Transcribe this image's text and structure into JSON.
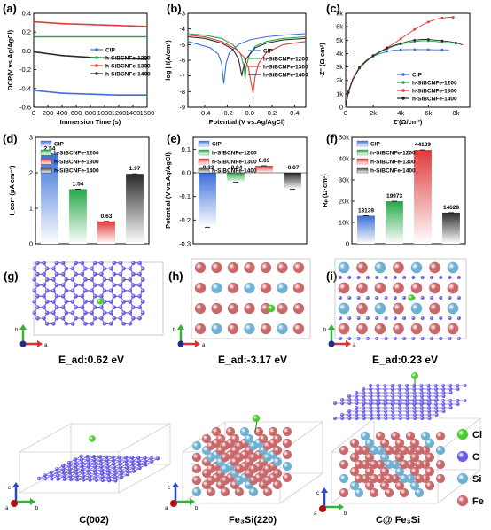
{
  "colors": {
    "cip": "#3a6fd8",
    "s1200": "#27a84a",
    "s1300": "#e03a3a",
    "s1400": "#2a2a2a",
    "cl": "#4ccd2c",
    "c": "#6a5ce0",
    "si": "#6fb0d2",
    "fe": "#c9686a",
    "axis_x": "#d93030",
    "axis_y": "#33b233",
    "axis_c": "#2946c8"
  },
  "legend": [
    "CIP",
    "h-SiBCNFe-1200",
    "h-SiBCNFe-1300",
    "h-SiBCNFe-1400"
  ],
  "chart_data": [
    {
      "id": "a",
      "panel_label": "(a)",
      "type": "line",
      "xlabel": "Immersion Time (s)",
      "ylabel": "OCP(V vs.Ag/AgCl)",
      "xlim": [
        0,
        1600
      ],
      "ylim": [
        -0.6,
        0.4
      ],
      "xticks": [
        0,
        200,
        400,
        600,
        800,
        1000,
        1200,
        1400,
        1600
      ],
      "yticks": [
        -0.6,
        -0.4,
        -0.2,
        0.0,
        0.2,
        0.4
      ],
      "xtick_labels": [
        "0",
        "200",
        "400",
        "600",
        "800",
        "1000",
        "1200",
        "1400",
        "1600"
      ],
      "ytick_labels": [
        "-0.6",
        "-0.4",
        "-0.2",
        "0.0",
        "0.2",
        "0.4"
      ],
      "legend_position": "center-right",
      "series": [
        {
          "name": "CIP",
          "x": [
            0,
            400,
            800,
            1200,
            1600
          ],
          "y": [
            -0.42,
            -0.45,
            -0.46,
            -0.47,
            -0.47
          ]
        },
        {
          "name": "h-SiBCNFe-1200",
          "x": [
            0,
            400,
            800,
            1200,
            1600
          ],
          "y": [
            0.15,
            0.15,
            0.15,
            0.15,
            0.15
          ]
        },
        {
          "name": "h-SiBCNFe-1300",
          "x": [
            0,
            400,
            800,
            1200,
            1600
          ],
          "y": [
            0.31,
            0.29,
            0.28,
            0.27,
            0.26
          ]
        },
        {
          "name": "h-SiBCNFe-1400",
          "x": [
            0,
            400,
            800,
            1200,
            1600
          ],
          "y": [
            -0.01,
            -0.05,
            -0.07,
            -0.08,
            -0.09
          ]
        }
      ]
    },
    {
      "id": "b",
      "panel_label": "(b)",
      "type": "line",
      "xlabel": "Potential (V vs.Ag/AgCl)",
      "ylabel": "log | I(A/cm²)",
      "xlim": [
        -0.55,
        0.5
      ],
      "ylim": [
        -9,
        -3
      ],
      "xticks": [
        -0.4,
        -0.2,
        0.0,
        0.2,
        0.4
      ],
      "yticks": [
        -9,
        -8,
        -7,
        -6,
        -5,
        -4,
        -3
      ],
      "xtick_labels": [
        "-0.4",
        "-0.2",
        "0.0",
        "0.2",
        "0.4"
      ],
      "ytick_labels": [
        "-9",
        "-8",
        "-7",
        "-6",
        "-5",
        "-4",
        "-3"
      ],
      "legend_position": "center-right",
      "series": [
        {
          "name": "CIP",
          "x": [
            -0.55,
            -0.45,
            -0.35,
            -0.28,
            -0.25,
            -0.23,
            -0.21,
            -0.18,
            -0.1,
            0.0,
            0.15,
            0.3,
            0.5
          ],
          "y": [
            -4.8,
            -5.0,
            -5.2,
            -5.6,
            -6.2,
            -7.5,
            -6.2,
            -5.5,
            -5.0,
            -4.7,
            -4.5,
            -4.4,
            -4.3
          ]
        },
        {
          "name": "h-SiBCNFe-1200",
          "x": [
            -0.55,
            -0.4,
            -0.25,
            -0.15,
            -0.08,
            -0.05,
            -0.04,
            -0.03,
            0.0,
            0.05,
            0.15,
            0.3,
            0.5
          ],
          "y": [
            -4.3,
            -4.4,
            -4.6,
            -5.0,
            -5.6,
            -6.4,
            -7.2,
            -6.4,
            -5.6,
            -5.1,
            -4.8,
            -4.6,
            -4.5
          ]
        },
        {
          "name": "h-SiBCNFe-1300",
          "x": [
            -0.55,
            -0.4,
            -0.25,
            -0.12,
            -0.05,
            -0.01,
            0.01,
            0.03,
            0.05,
            0.08,
            0.15,
            0.3,
            0.5
          ],
          "y": [
            -4.4,
            -4.5,
            -4.8,
            -5.3,
            -5.8,
            -6.5,
            -7.3,
            -8.1,
            -7.0,
            -6.2,
            -5.5,
            -5.0,
            -4.8
          ]
        },
        {
          "name": "h-SiBCNFe-1400",
          "x": [
            -0.55,
            -0.4,
            -0.25,
            -0.15,
            -0.1,
            -0.08,
            -0.07,
            -0.06,
            -0.03,
            0.05,
            0.15,
            0.3,
            0.5
          ],
          "y": [
            -4.5,
            -4.6,
            -4.9,
            -5.3,
            -5.9,
            -6.6,
            -7.0,
            -6.6,
            -5.9,
            -5.2,
            -4.9,
            -4.7,
            -4.6
          ]
        }
      ]
    },
    {
      "id": "c",
      "panel_label": "(c)",
      "type": "scatter",
      "xlabel": "Z'(Ω/cm²)",
      "ylabel": "-Z'' (Ω·cm²)",
      "xlim": [
        0,
        9000
      ],
      "ylim": [
        0,
        7000
      ],
      "xticks": [
        0,
        2000,
        4000,
        6000,
        8000
      ],
      "yticks": [
        0,
        1000,
        2000,
        3000,
        4000,
        5000,
        6000,
        7000
      ],
      "xtick_labels": [
        "0",
        "2k",
        "4k",
        "6k",
        "8k"
      ],
      "ytick_labels": [
        "0",
        "1k",
        "2k",
        "3k",
        "4k",
        "5k",
        "6k",
        "7k"
      ],
      "legend_position": "bottom-right",
      "series": [
        {
          "name": "CIP",
          "x": [
            0,
            200,
            500,
            1000,
            1500,
            2000,
            2500,
            3000,
            3500,
            4000,
            4500,
            5000,
            5500,
            6000,
            6500,
            7000,
            7500
          ],
          "y": [
            0,
            1200,
            2100,
            3000,
            3500,
            3800,
            4000,
            4150,
            4250,
            4280,
            4300,
            4300,
            4300,
            4290,
            4280,
            4280,
            4270
          ]
        },
        {
          "name": "h-SiBCNFe-1200",
          "x": [
            0,
            200,
            500,
            1000,
            1500,
            2000,
            2500,
            3000,
            3500,
            4000,
            4500,
            5000,
            5500,
            6000,
            6500,
            7000,
            7500,
            8000
          ],
          "y": [
            0,
            1100,
            2000,
            2900,
            3400,
            3800,
            4100,
            4350,
            4550,
            4700,
            4800,
            4900,
            4950,
            4950,
            4900,
            4850,
            4800,
            4750
          ]
        },
        {
          "name": "h-SiBCNFe-1300",
          "x": [
            0,
            200,
            500,
            1000,
            1500,
            2000,
            2500,
            3000,
            3500,
            4000,
            4500,
            5000,
            5500,
            6000,
            6500,
            7000,
            7500,
            7800
          ],
          "y": [
            0,
            1200,
            2100,
            3000,
            3500,
            3850,
            4150,
            4450,
            4750,
            5100,
            5450,
            5800,
            6100,
            6350,
            6550,
            6650,
            6700,
            6700
          ]
        },
        {
          "name": "h-SiBCNFe-1400",
          "x": [
            0,
            200,
            500,
            1000,
            1500,
            2000,
            2500,
            3000,
            3500,
            4000,
            4500,
            5000,
            5500,
            6000,
            6500,
            7000,
            7500,
            8000,
            8500
          ],
          "y": [
            0,
            1100,
            2000,
            2950,
            3450,
            3850,
            4150,
            4400,
            4600,
            4750,
            4900,
            5000,
            5050,
            5050,
            5000,
            4950,
            4900,
            4800,
            4650
          ]
        }
      ]
    },
    {
      "id": "d",
      "panel_label": "(d)",
      "type": "bar",
      "ylabel": "I_corr (μA cm⁻²)",
      "categories": [
        "CIP",
        "h-SiBCNFe-1200",
        "h-SiBCNFe-1300",
        "h-SiBCNFe-1400"
      ],
      "values": [
        2.54,
        1.54,
        0.63,
        1.97
      ],
      "value_labels": [
        "2.54",
        "1.54",
        "0.63",
        "1.97"
      ],
      "ylim": [
        0,
        3
      ],
      "yticks": [
        0,
        1,
        2,
        3
      ],
      "ytick_labels": [
        "0",
        "1",
        "2",
        "3"
      ],
      "legend_position": "top-left"
    },
    {
      "id": "e",
      "panel_label": "(e)",
      "type": "bar",
      "ylabel": "Potential (V vs.Ag/AgCl)",
      "categories": [
        "CIP",
        "h-SiBCNFe-1200",
        "h-SiBCNFe-1300",
        "h-SiBCNFe-1400"
      ],
      "values": [
        -0.23,
        -0.04,
        0.03,
        -0.07
      ],
      "value_labels": [
        "-0.23",
        "-0.04",
        "0.03",
        "-0.07"
      ],
      "ylim": [
        -0.3,
        0.15
      ],
      "yticks": [
        -0.3,
        -0.2,
        -0.1,
        0.0,
        0.1
      ],
      "ytick_labels": [
        "-0.3",
        "-0.2",
        "-0.1",
        "0.0",
        "0.1"
      ],
      "legend_position": "top-left"
    },
    {
      "id": "f",
      "panel_label": "(f)",
      "type": "bar",
      "ylabel": "Rₚ (Ω·cm²)",
      "categories": [
        "CIP",
        "h-SiBCNFe-1200",
        "h-SiBCNFe-1300",
        "h-SiBCNFe-1400"
      ],
      "values": [
        13139,
        19973,
        44139,
        14628
      ],
      "value_labels": [
        "13139",
        "19973",
        "44139",
        "14628"
      ],
      "ylim": [
        0,
        50000
      ],
      "yticks": [
        0,
        10000,
        20000,
        30000,
        40000,
        50000
      ],
      "ytick_labels": [
        "0",
        "10k",
        "20k",
        "30k",
        "40k",
        "50k"
      ],
      "legend_position": "top-left"
    }
  ],
  "structures": {
    "g": {
      "label": "(g)",
      "energy": "E_ad:0.62 eV",
      "caption": "C(002)"
    },
    "h": {
      "label": "(h)",
      "energy": "E_ad:-3.17 eV",
      "caption": "Fe₃Si(220)"
    },
    "i": {
      "label": "(i)",
      "energy": "E_ad:0.23 eV",
      "caption": "C@ Fe₃Si"
    }
  },
  "atom_legend": [
    {
      "element": "Cl",
      "color": "#4ccd2c"
    },
    {
      "element": "C",
      "color": "#6a5ce0"
    },
    {
      "element": "Si",
      "color": "#6fb0d2"
    },
    {
      "element": "Fe",
      "color": "#c9686a"
    }
  ],
  "axis_labels": {
    "a": "a",
    "b": "b",
    "c": "c"
  }
}
